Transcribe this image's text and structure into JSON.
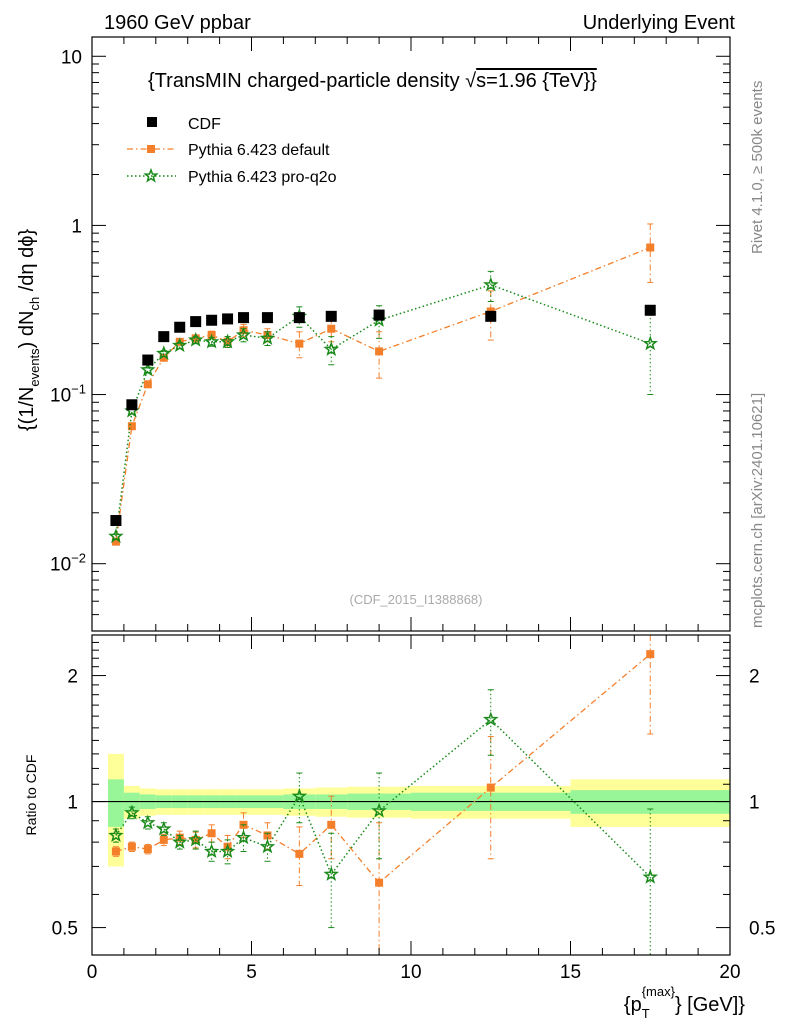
{
  "header": {
    "left": "1960 GeV ppbar",
    "right": "Underlying Event"
  },
  "side_text": {
    "rivet": "Rivet 4.1.0, ≥ 500k events",
    "mcplots": "mcplots.cern.ch [arXiv:2401.10621]"
  },
  "colors": {
    "cdf": "#000000",
    "pythia_default": "#f47f2b",
    "pythia_proq2o": "#1a8a1a",
    "band_inner": "#98f598",
    "band_outer": "#ffff99"
  },
  "chart_data": [
    {
      "type": "scatter",
      "title": "{TransMIN charged-particle density √s=1.96 {TeV}}",
      "title_parts": {
        "before": "{TransMIN charged-particle density ",
        "sqrt": "√",
        "after": "s=1.96 {TeV}}"
      },
      "watermark": "(CDF_2015_I1388868)",
      "yscale": "log",
      "ylabel": "{(1/N_events) dN_ch /dη dϕ}",
      "ylabel_parts": {
        "p1": "{(1/N",
        "sub1": "events",
        "p2": ") dN",
        "sub2": "ch",
        "p3": " /dη dϕ}"
      },
      "xlim": [
        0,
        20
      ],
      "ylim": [
        0.004,
        13
      ],
      "yticks": [
        0.01,
        0.1,
        1,
        10
      ],
      "ytick_labels": {
        "0.01": [
          "10",
          "−2"
        ],
        "0.1": [
          "10",
          "−1"
        ],
        "1": [
          "1",
          ""
        ],
        "10": [
          "10",
          ""
        ]
      },
      "legend": {
        "position": "top-left",
        "entries": [
          "CDF",
          "Pythia 6.423 default",
          "Pythia 6.423 pro-q2o"
        ]
      },
      "series": [
        {
          "name": "CDF",
          "x": [
            0.75,
            1.25,
            1.75,
            2.25,
            2.75,
            3.25,
            3.75,
            4.25,
            4.75,
            5.5,
            6.5,
            7.5,
            9.0,
            12.5,
            17.5
          ],
          "y": [
            0.018,
            0.087,
            0.16,
            0.22,
            0.25,
            0.27,
            0.275,
            0.28,
            0.285,
            0.285,
            0.285,
            0.29,
            0.295,
            0.29,
            0.315
          ],
          "err": [
            0.001,
            0.002,
            0.003,
            0.004,
            0.004,
            0.004,
            0.004,
            0.004,
            0.005,
            0.005,
            0.006,
            0.007,
            0.01,
            0.012,
            0.02
          ]
        },
        {
          "name": "Pythia 6.423 default",
          "x": [
            0.75,
            1.25,
            1.75,
            2.25,
            2.75,
            3.25,
            3.75,
            4.25,
            4.75,
            5.5,
            6.5,
            7.5,
            9.0,
            12.5,
            17.5
          ],
          "y": [
            0.0135,
            0.065,
            0.115,
            0.165,
            0.205,
            0.215,
            0.225,
            0.205,
            0.24,
            0.225,
            0.2,
            0.245,
            0.18,
            0.31,
            0.74
          ],
          "err": [
            0.0005,
            0.002,
            0.004,
            0.006,
            0.008,
            0.01,
            0.012,
            0.015,
            0.02,
            0.02,
            0.035,
            0.04,
            0.055,
            0.1,
            0.28
          ]
        },
        {
          "name": "Pythia 6.423 pro-q2o",
          "x": [
            0.75,
            1.25,
            1.75,
            2.25,
            2.75,
            3.25,
            3.75,
            4.25,
            4.75,
            5.5,
            6.5,
            7.5,
            9.0,
            12.5,
            17.5
          ],
          "y": [
            0.0145,
            0.08,
            0.14,
            0.175,
            0.195,
            0.21,
            0.205,
            0.205,
            0.225,
            0.215,
            0.29,
            0.185,
            0.275,
            0.445,
            0.2
          ],
          "err": [
            0.0005,
            0.003,
            0.005,
            0.007,
            0.008,
            0.01,
            0.012,
            0.015,
            0.02,
            0.02,
            0.04,
            0.035,
            0.06,
            0.09,
            0.1
          ]
        }
      ]
    },
    {
      "type": "scatter",
      "ylabel": "Ratio to CDF",
      "xlabel": "{p_T^{max}} [GeV]",
      "xlabel_parts": {
        "p1": "{p",
        "sub": "T",
        "sup": "{max}",
        "p2": "} [GeV]}"
      },
      "xlim": [
        0,
        20
      ],
      "ylim": [
        0.43,
        2.5
      ],
      "yscale": "log",
      "xticks": [
        0,
        5,
        10,
        15,
        20
      ],
      "xtick_labels": [
        "0",
        "5",
        "10",
        "15",
        "20"
      ],
      "yticks": [
        0.5,
        1,
        2
      ],
      "ytick_labels": [
        "0.5",
        "1",
        "2"
      ],
      "bands": {
        "edges": [
          0.5,
          1.0,
          1.5,
          2.0,
          2.5,
          3.0,
          3.5,
          4.0,
          4.5,
          5.0,
          6.0,
          7.0,
          8.0,
          10.0,
          15.0,
          20.0
        ],
        "inner": [
          0.13,
          0.05,
          0.04,
          0.035,
          0.035,
          0.035,
          0.035,
          0.035,
          0.035,
          0.035,
          0.04,
          0.04,
          0.045,
          0.05,
          0.065
        ],
        "outer": [
          0.3,
          0.09,
          0.075,
          0.07,
          0.07,
          0.07,
          0.07,
          0.07,
          0.07,
          0.07,
          0.075,
          0.08,
          0.085,
          0.09,
          0.13
        ]
      },
      "series": [
        {
          "name": "Pythia 6.423 default",
          "x": [
            0.75,
            1.25,
            1.75,
            2.25,
            2.75,
            3.25,
            3.75,
            4.25,
            4.75,
            5.5,
            6.5,
            7.5,
            9.0,
            12.5,
            17.5
          ],
          "y": [
            0.76,
            0.78,
            0.77,
            0.81,
            0.82,
            0.81,
            0.84,
            0.78,
            0.88,
            0.83,
            0.75,
            0.88,
            0.64,
            1.08,
            2.25
          ],
          "err": [
            0.02,
            0.02,
            0.02,
            0.025,
            0.03,
            0.035,
            0.04,
            0.05,
            0.06,
            0.06,
            0.12,
            0.15,
            0.25,
            0.35,
            0.8
          ]
        },
        {
          "name": "Pythia 6.423 pro-q2o",
          "x": [
            0.75,
            1.25,
            1.75,
            2.25,
            2.75,
            3.25,
            3.75,
            4.25,
            4.75,
            5.5,
            6.5,
            7.5,
            9.0,
            12.5,
            17.5
          ],
          "y": [
            0.83,
            0.94,
            0.89,
            0.86,
            0.8,
            0.81,
            0.76,
            0.76,
            0.82,
            0.78,
            1.03,
            0.67,
            0.95,
            1.57,
            0.66
          ],
          "err": [
            0.03,
            0.03,
            0.03,
            0.03,
            0.03,
            0.04,
            0.04,
            0.05,
            0.06,
            0.06,
            0.14,
            0.17,
            0.22,
            0.28,
            0.3
          ]
        }
      ]
    }
  ]
}
